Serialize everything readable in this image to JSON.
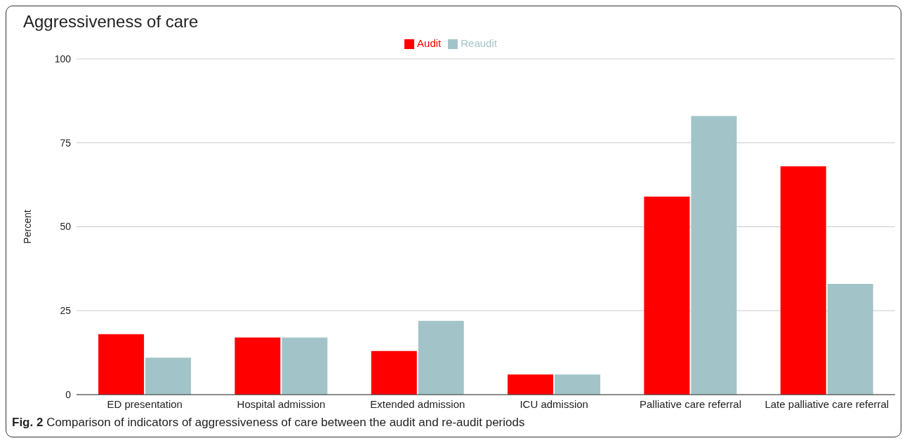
{
  "chart_data": {
    "type": "bar",
    "title": "Aggressiveness of care",
    "ylabel": "Percent",
    "categories": [
      "ED presentation",
      "Hospital admission",
      "Extended admission",
      "ICU admission",
      "Palliative care referral",
      "Late palliative care referral"
    ],
    "series": [
      {
        "name": "Audit",
        "color": "#ff0000",
        "values": [
          18,
          17,
          13,
          6,
          59,
          68
        ]
      },
      {
        "name": "Reaudit",
        "color": "#a2c4c9",
        "values": [
          11,
          17,
          22,
          6,
          83,
          33
        ]
      }
    ],
    "ylim": [
      0,
      100
    ],
    "yticks": [
      0,
      25,
      50,
      75,
      100
    ],
    "grid": "y",
    "legend": "top",
    "annotations": [
      "Fig. 2",
      "Comparison of indicators of aggressiveness of care between the audit and re-audit periods"
    ]
  }
}
